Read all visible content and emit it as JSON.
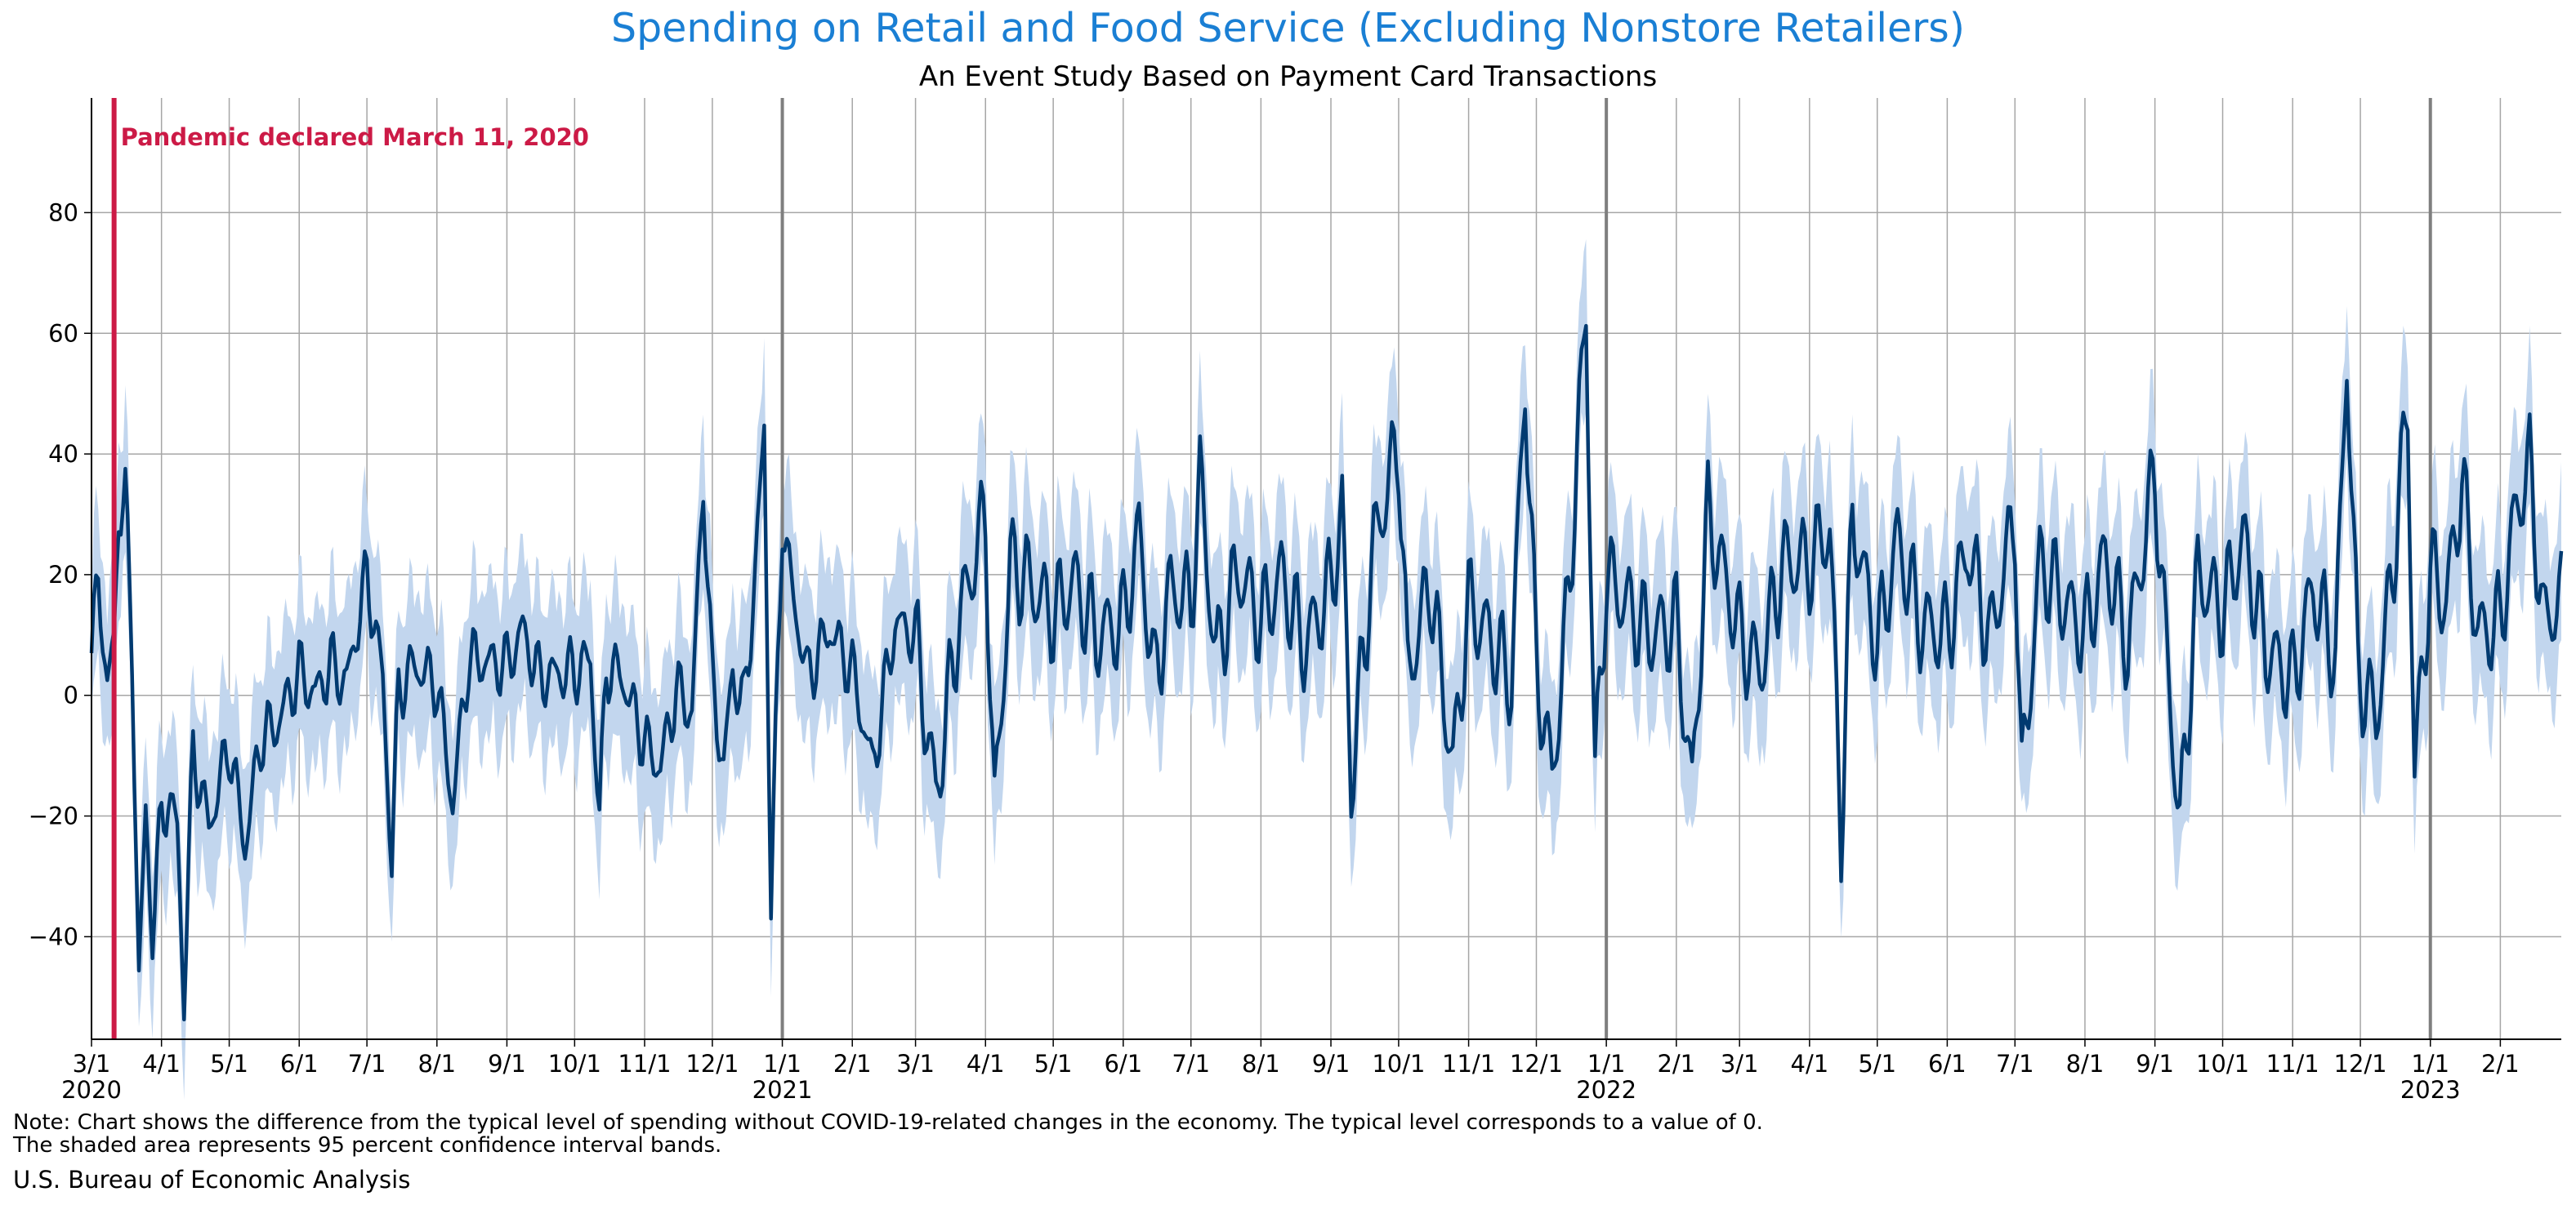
{
  "title": "Spending on Retail and Food Service (Excluding Nonstore Retailers)",
  "subtitle": "An Event Study Based on Payment Card Transactions",
  "note_line1": "Note: Chart shows the difference from the typical level of spending without COVID-19-related changes in the economy. The typical level corresponds to a value of 0.",
  "note_line2": "The shaded area represents 95 percent confidence interval bands.",
  "source": "U.S. Bureau of Economic Analysis",
  "colors": {
    "title": "#1a7fd4",
    "line": "#003a70",
    "band": "#c2d6ee",
    "event": "#cc1a46",
    "grid": "#a6a6a6",
    "year_line": "#7f7f7f"
  },
  "chart_data": {
    "type": "line",
    "title": "Spending on Retail and Food Service (Excluding Nonstore Retailers)",
    "subtitle": "An Event Study Based on Payment Card Transactions",
    "xlabel": "",
    "ylabel": "",
    "x_start": "2020-03-01",
    "x_end": "2023-02-28",
    "y_range": [
      -57,
      99
    ],
    "y_ticks": [
      -40,
      -20,
      0,
      20,
      40,
      60,
      80
    ],
    "x_tick_labels": [
      "3/1",
      "4/1",
      "5/1",
      "6/1",
      "7/1",
      "8/1",
      "9/1",
      "10/1",
      "11/1",
      "12/1",
      "1/1",
      "2/1",
      "3/1",
      "4/1",
      "5/1",
      "6/1",
      "7/1",
      "8/1",
      "9/1",
      "10/1",
      "11/1",
      "12/1",
      "1/1",
      "2/1",
      "3/1",
      "4/1",
      "5/1",
      "6/1",
      "7/1",
      "8/1",
      "9/1",
      "10/1",
      "11/1",
      "12/1",
      "1/1",
      "2/1"
    ],
    "year_labels": [
      "2020",
      "2021",
      "2022",
      "2023"
    ],
    "grid": true,
    "legend": "none",
    "annotation": {
      "text": "Pandemic declared March 11, 2020",
      "date": "2020-03-11"
    },
    "series": [
      {
        "kind": "daily_line_with_95pct_band",
        "points": [
          [
            "2020-03-01",
            7
          ],
          [
            "2020-03-04",
            19
          ],
          [
            "2020-03-08",
            2
          ],
          [
            "2020-03-11",
            8
          ],
          [
            "2020-03-13",
            31
          ],
          [
            "2020-03-16",
            33
          ],
          [
            "2020-03-19",
            7
          ],
          [
            "2020-03-22",
            -47
          ],
          [
            "2020-03-25",
            -20
          ],
          [
            "2020-03-28",
            -39
          ],
          [
            "2020-04-01",
            -20
          ],
          [
            "2020-04-04",
            -17
          ],
          [
            "2020-04-08",
            -22
          ],
          [
            "2020-04-11",
            -50
          ],
          [
            "2020-04-15",
            -9
          ],
          [
            "2020-04-22",
            -22
          ],
          [
            "2020-05-01",
            -8
          ],
          [
            "2020-05-08",
            -25
          ],
          [
            "2020-05-15",
            -7
          ],
          [
            "2020-05-22",
            -5
          ],
          [
            "2020-06-01",
            4
          ],
          [
            "2020-06-08",
            0
          ],
          [
            "2020-06-15",
            5
          ],
          [
            "2020-06-22",
            2
          ],
          [
            "2020-07-01",
            20
          ],
          [
            "2020-07-08",
            3
          ],
          [
            "2020-07-12",
            -28
          ],
          [
            "2020-07-15",
            1
          ],
          [
            "2020-07-22",
            5
          ],
          [
            "2020-08-01",
            2
          ],
          [
            "2020-08-08",
            -18
          ],
          [
            "2020-08-15",
            6
          ],
          [
            "2020-09-01",
            5
          ],
          [
            "2020-09-08",
            11
          ],
          [
            "2020-09-15",
            3
          ],
          [
            "2020-10-01",
            4
          ],
          [
            "2020-10-08",
            6
          ],
          [
            "2020-10-12",
            -21
          ],
          [
            "2020-10-15",
            5
          ],
          [
            "2020-10-22",
            3
          ],
          [
            "2020-11-01",
            -8
          ],
          [
            "2020-11-08",
            -12
          ],
          [
            "2020-11-15",
            1
          ],
          [
            "2020-11-22",
            -3
          ],
          [
            "2020-11-27",
            36
          ],
          [
            "2020-12-01",
            2
          ],
          [
            "2020-12-06",
            -12
          ],
          [
            "2020-12-10",
            4
          ],
          [
            "2020-12-15",
            -2
          ],
          [
            "2020-12-20",
            20
          ],
          [
            "2020-12-24",
            45
          ],
          [
            "2020-12-27",
            -35
          ],
          [
            "2021-01-01",
            30
          ],
          [
            "2021-01-05",
            18
          ],
          [
            "2021-01-12",
            3
          ],
          [
            "2021-01-22",
            11
          ],
          [
            "2021-02-01",
            4
          ],
          [
            "2021-02-10",
            -12
          ],
          [
            "2021-02-20",
            12
          ],
          [
            "2021-03-01",
            10
          ],
          [
            "2021-03-10",
            -17
          ],
          [
            "2021-03-20",
            12
          ],
          [
            "2021-04-01",
            30
          ],
          [
            "2021-04-05",
            -20
          ],
          [
            "2021-04-12",
            22
          ],
          [
            "2021-04-22",
            18
          ],
          [
            "2021-05-01",
            13
          ],
          [
            "2021-05-10",
            19
          ],
          [
            "2021-05-20",
            10
          ],
          [
            "2021-06-01",
            12
          ],
          [
            "2021-06-08",
            27
          ],
          [
            "2021-06-15",
            2
          ],
          [
            "2021-06-22",
            18
          ],
          [
            "2021-07-01",
            15
          ],
          [
            "2021-07-05",
            36
          ],
          [
            "2021-07-12",
            6
          ],
          [
            "2021-07-22",
            21
          ],
          [
            "2021-08-01",
            12
          ],
          [
            "2021-08-10",
            20
          ],
          [
            "2021-08-20",
            8
          ],
          [
            "2021-09-01",
            18
          ],
          [
            "2021-09-06",
            31
          ],
          [
            "2021-09-10",
            -15
          ],
          [
            "2021-09-20",
            25
          ],
          [
            "2021-10-01",
            42
          ],
          [
            "2021-10-05",
            3
          ],
          [
            "2021-10-15",
            19
          ],
          [
            "2021-10-25",
            -12
          ],
          [
            "2021-11-01",
            15
          ],
          [
            "2021-11-10",
            10
          ],
          [
            "2021-11-20",
            2
          ],
          [
            "2021-11-26",
            53
          ],
          [
            "2021-12-01",
            5
          ],
          [
            "2021-12-08",
            -14
          ],
          [
            "2021-12-15",
            15
          ],
          [
            "2021-12-23",
            64
          ],
          [
            "2021-12-27",
            -14
          ],
          [
            "2022-01-01",
            20
          ],
          [
            "2022-01-08",
            16
          ],
          [
            "2022-01-20",
            10
          ],
          [
            "2022-02-01",
            12
          ],
          [
            "2022-02-08",
            -16
          ],
          [
            "2022-02-15",
            30
          ],
          [
            "2022-03-01",
            10
          ],
          [
            "2022-03-10",
            4
          ],
          [
            "2022-03-20",
            22
          ],
          [
            "2022-04-01",
            22
          ],
          [
            "2022-04-10",
            28
          ],
          [
            "2022-04-15",
            -23
          ],
          [
            "2022-04-20",
            30
          ],
          [
            "2022-05-01",
            8
          ],
          [
            "2022-05-10",
            26
          ],
          [
            "2022-05-20",
            12
          ],
          [
            "2022-06-01",
            10
          ],
          [
            "2022-06-10",
            25
          ],
          [
            "2022-06-20",
            9
          ],
          [
            "2022-07-01",
            30
          ],
          [
            "2022-07-04",
            -15
          ],
          [
            "2022-07-12",
            22
          ],
          [
            "2022-08-01",
            10
          ],
          [
            "2022-08-10",
            23
          ],
          [
            "2022-08-20",
            8
          ],
          [
            "2022-09-01",
            37
          ],
          [
            "2022-09-06",
            8
          ],
          [
            "2022-09-12",
            -22
          ],
          [
            "2022-09-20",
            20
          ],
          [
            "2022-10-01",
            14
          ],
          [
            "2022-10-10",
            26
          ],
          [
            "2022-10-20",
            8
          ],
          [
            "2022-11-01",
            2
          ],
          [
            "2022-11-10",
            18
          ],
          [
            "2022-11-20",
            6
          ],
          [
            "2022-11-25",
            57
          ],
          [
            "2022-11-30",
            4
          ],
          [
            "2022-12-08",
            -4
          ],
          [
            "2022-12-15",
            20
          ],
          [
            "2022-12-22",
            48
          ],
          [
            "2022-12-25",
            -13
          ],
          [
            "2023-01-01",
            21
          ],
          [
            "2023-01-08",
            15
          ],
          [
            "2023-01-15",
            36
          ],
          [
            "2023-01-22",
            10
          ],
          [
            "2023-02-01",
            12
          ],
          [
            "2023-02-08",
            31
          ],
          [
            "2023-02-14",
            38
          ],
          [
            "2023-02-20",
            12
          ],
          [
            "2023-02-28",
            16
          ]
        ],
        "band_halfwidth": 9
      }
    ]
  }
}
